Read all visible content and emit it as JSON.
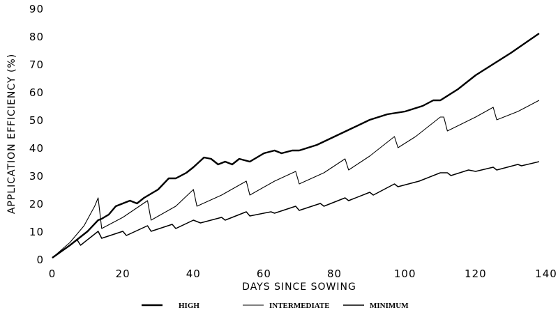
{
  "chart_data": {
    "type": "line",
    "title": "",
    "xlabel": "DAYS SINCE SOWING",
    "ylabel": "APPLICATION EFFICIENCY (%)",
    "xlim": [
      0,
      140
    ],
    "ylim": [
      0,
      90
    ],
    "xticks": [
      0,
      20,
      40,
      60,
      80,
      100,
      120,
      140
    ],
    "yticks": [
      0,
      10,
      20,
      30,
      40,
      50,
      60,
      70,
      80,
      90
    ],
    "grid": false,
    "legend_placement": "bottom",
    "series": [
      {
        "name": "HIGH",
        "width": "thick",
        "points": [
          [
            0,
            0.5
          ],
          [
            5,
            5
          ],
          [
            10,
            10
          ],
          [
            13,
            14
          ],
          [
            14,
            14.5
          ],
          [
            16,
            16
          ],
          [
            18,
            19
          ],
          [
            20,
            20
          ],
          [
            22,
            21
          ],
          [
            24,
            20
          ],
          [
            26,
            22
          ],
          [
            30,
            25
          ],
          [
            33,
            29
          ],
          [
            35,
            29
          ],
          [
            38,
            31
          ],
          [
            40,
            33
          ],
          [
            43,
            36.5
          ],
          [
            45,
            36
          ],
          [
            47,
            34
          ],
          [
            49,
            35
          ],
          [
            51,
            34
          ],
          [
            53,
            36
          ],
          [
            56,
            35
          ],
          [
            60,
            38
          ],
          [
            63,
            39
          ],
          [
            65,
            38
          ],
          [
            68,
            39
          ],
          [
            70,
            39
          ],
          [
            75,
            41
          ],
          [
            80,
            44
          ],
          [
            85,
            47
          ],
          [
            90,
            50
          ],
          [
            95,
            52
          ],
          [
            100,
            53
          ],
          [
            105,
            55
          ],
          [
            108,
            57
          ],
          [
            110,
            57
          ],
          [
            115,
            61
          ],
          [
            120,
            66
          ],
          [
            125,
            70
          ],
          [
            130,
            74
          ],
          [
            138,
            81
          ]
        ]
      },
      {
        "name": "INTERMEDIATE",
        "width": "thin",
        "points": [
          [
            0,
            0.5
          ],
          [
            5,
            6
          ],
          [
            9,
            12
          ],
          [
            12,
            19
          ],
          [
            13,
            22
          ],
          [
            14,
            11
          ],
          [
            20,
            15
          ],
          [
            27,
            21
          ],
          [
            28,
            14
          ],
          [
            35,
            19
          ],
          [
            40,
            25
          ],
          [
            41,
            19
          ],
          [
            48,
            23
          ],
          [
            55,
            28
          ],
          [
            56,
            23
          ],
          [
            63,
            28
          ],
          [
            69,
            31.5
          ],
          [
            70,
            27
          ],
          [
            77,
            31
          ],
          [
            83,
            36
          ],
          [
            84,
            32
          ],
          [
            90,
            37
          ],
          [
            97,
            44
          ],
          [
            98,
            40
          ],
          [
            103,
            44
          ],
          [
            110,
            51
          ],
          [
            111,
            51
          ],
          [
            112,
            46
          ],
          [
            120,
            51
          ],
          [
            125,
            54.5
          ],
          [
            126,
            50
          ],
          [
            132,
            53
          ],
          [
            138,
            57
          ]
        ]
      },
      {
        "name": "MINIMUM",
        "width": "medium",
        "points": [
          [
            0,
            0.5
          ],
          [
            5,
            5
          ],
          [
            7,
            7
          ],
          [
            8,
            5
          ],
          [
            12,
            9
          ],
          [
            13,
            10
          ],
          [
            14,
            7.5
          ],
          [
            20,
            10
          ],
          [
            21,
            8.5
          ],
          [
            27,
            12
          ],
          [
            28,
            10
          ],
          [
            34,
            12.5
          ],
          [
            35,
            11
          ],
          [
            40,
            14
          ],
          [
            42,
            13
          ],
          [
            48,
            15
          ],
          [
            49,
            14
          ],
          [
            55,
            17
          ],
          [
            56,
            15.5
          ],
          [
            62,
            17
          ],
          [
            63,
            16.5
          ],
          [
            69,
            19
          ],
          [
            70,
            17.5
          ],
          [
            76,
            20
          ],
          [
            77,
            19
          ],
          [
            83,
            22
          ],
          [
            84,
            21
          ],
          [
            90,
            24
          ],
          [
            91,
            23
          ],
          [
            97,
            27
          ],
          [
            98,
            26
          ],
          [
            104,
            28
          ],
          [
            105,
            28.5
          ],
          [
            110,
            31
          ],
          [
            112,
            31
          ],
          [
            113,
            30
          ],
          [
            118,
            32
          ],
          [
            120,
            31.5
          ],
          [
            125,
            33
          ],
          [
            126,
            32
          ],
          [
            132,
            34
          ],
          [
            133,
            33.5
          ],
          [
            138,
            35
          ]
        ]
      }
    ]
  }
}
